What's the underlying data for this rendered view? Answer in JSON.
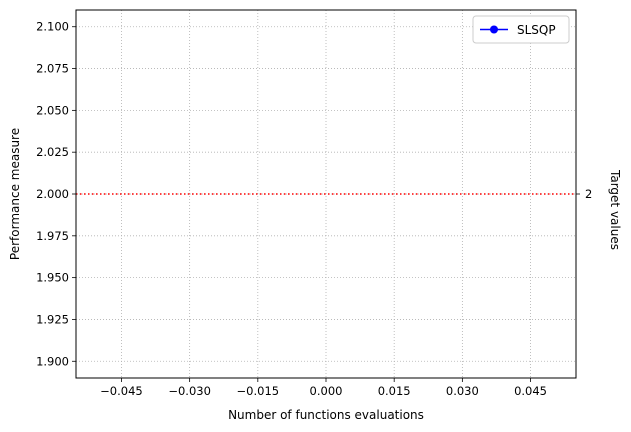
{
  "chart_data": {
    "type": "line",
    "xlabel": "Number of functions evaluations",
    "ylabel": "Performance measure",
    "right_ylabel": "Target values",
    "xlim": [
      -0.055,
      0.055
    ],
    "ylim": [
      1.89,
      2.11
    ],
    "x_ticks": [
      -0.045,
      -0.03,
      -0.015,
      0.0,
      0.015,
      0.03,
      0.045
    ],
    "x_tick_labels": [
      "−0.045",
      "−0.030",
      "−0.015",
      "0.000",
      "0.015",
      "0.030",
      "0.045"
    ],
    "y_ticks": [
      1.9,
      1.925,
      1.95,
      1.975,
      2.0,
      2.025,
      2.05,
      2.075,
      2.1
    ],
    "y_tick_labels": [
      "1.900",
      "1.925",
      "1.950",
      "1.975",
      "2.000",
      "2.025",
      "2.050",
      "2.075",
      "2.100"
    ],
    "grid": true,
    "legend_position": "top-right",
    "series": [
      {
        "name": "SLSQP",
        "color": "#0000ff",
        "marker": "circle",
        "x": [
          0
        ],
        "y": [
          2
        ]
      }
    ],
    "target_lines": [
      {
        "value": 2,
        "label": "2",
        "color": "#ff0000",
        "style": "dotted"
      }
    ]
  }
}
